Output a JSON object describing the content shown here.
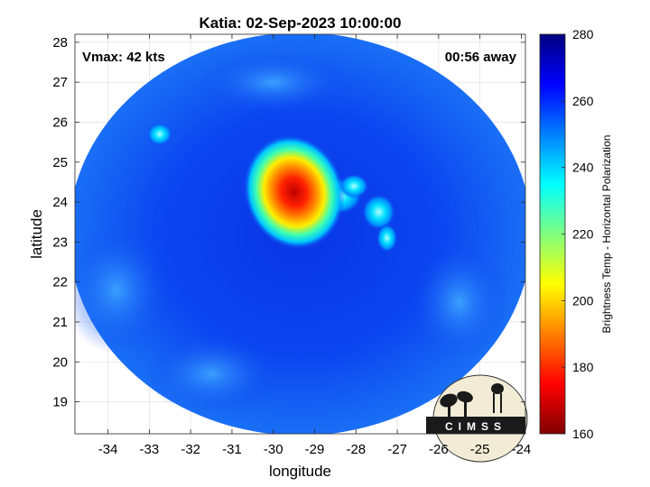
{
  "title": "Katia: 02-Sep-2023 10:00:00",
  "annotations": {
    "vmax": "Vmax: 42 kts",
    "away": "00:56 away"
  },
  "logo_text": "CIMSS",
  "chart_data": {
    "type": "heatmap",
    "title": "Katia: 02-Sep-2023 10:00:00",
    "xlabel": "longitude",
    "ylabel": "latitude",
    "xlim": [
      -34.8,
      -23.9
    ],
    "ylim": [
      18.2,
      28.2
    ],
    "x_ticks": [
      -34,
      -33,
      -32,
      -31,
      -30,
      -29,
      -28,
      -27,
      -26,
      -25,
      -24
    ],
    "y_ticks": [
      19,
      20,
      21,
      22,
      23,
      24,
      25,
      26,
      27,
      28
    ],
    "grid": true,
    "swath_center": [
      -29.35,
      23.2
    ],
    "swath_radius_deg": 5.6,
    "background_value": 262,
    "features": [
      {
        "name": "core",
        "center": [
          -29.5,
          24.2
        ],
        "min_value": 172
      },
      {
        "name": "band-east-1",
        "center": [
          -28.5,
          24.1
        ],
        "min_value": 240
      },
      {
        "name": "band-east-2",
        "center": [
          -27.5,
          23.8
        ],
        "min_value": 235
      },
      {
        "name": "band-south",
        "center": [
          -27.2,
          23.1
        ],
        "min_value": 248
      },
      {
        "name": "isolated-nw",
        "center": [
          -32.7,
          25.7
        ],
        "min_value": 248
      }
    ],
    "colorbar": {
      "label": "Brightness Temp - Horizontal Polarization",
      "range": [
        160,
        280
      ],
      "ticks": [
        160,
        180,
        200,
        220,
        240,
        260,
        280
      ],
      "colormap": "jet"
    }
  }
}
